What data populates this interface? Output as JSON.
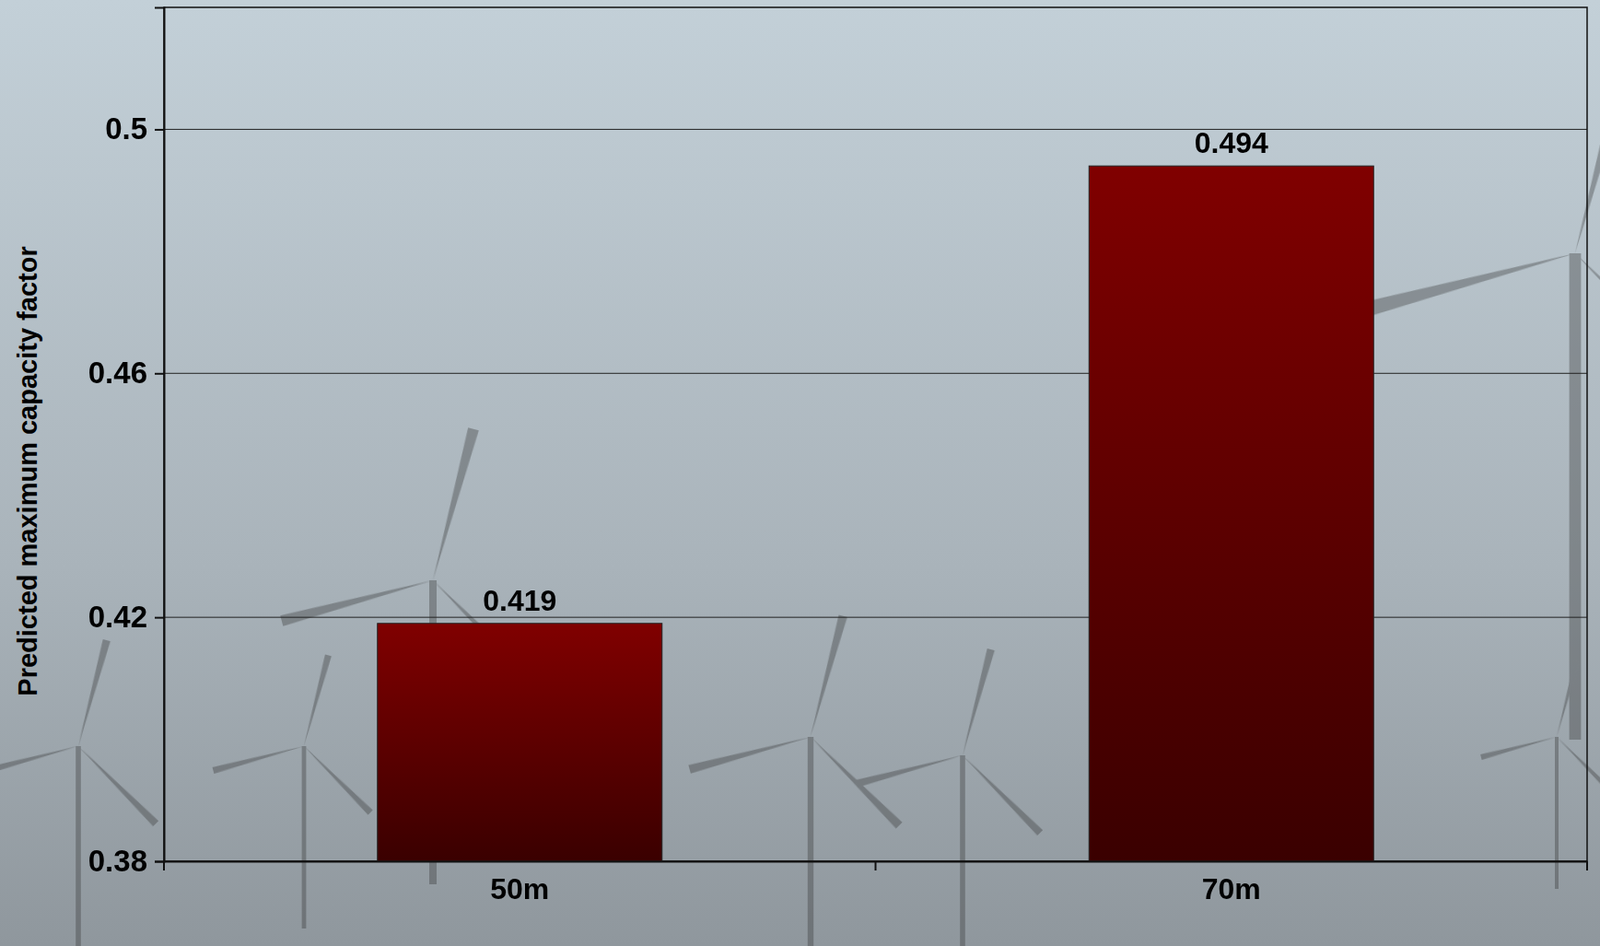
{
  "chart_data": {
    "type": "bar",
    "y_label": "Predicted maximum capacity factor",
    "categories": [
      "50m",
      "70m"
    ],
    "values": [
      0.419,
      0.494
    ],
    "color": "#800000",
    "ylim": [
      0.38,
      0.52
    ],
    "yticks": [
      0.38,
      0.42,
      0.46,
      0.5
    ],
    "grid": true,
    "data_labels": true
  }
}
